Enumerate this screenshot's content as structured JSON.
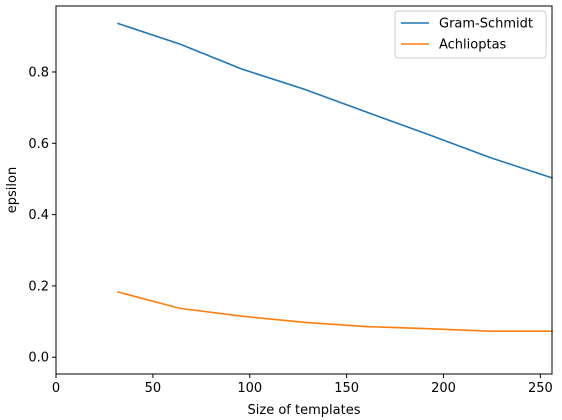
{
  "chart_data": {
    "type": "line",
    "title": "",
    "xlabel": "Size of templates",
    "ylabel": "epsilon",
    "xlim": [
      0,
      256
    ],
    "ylim": [
      -0.047,
      0.985
    ],
    "xticks": [
      0,
      50,
      100,
      150,
      200,
      250
    ],
    "xtick_labels": [
      "0",
      "50",
      "100",
      "150",
      "200",
      "250"
    ],
    "yticks": [
      0.0,
      0.2,
      0.4,
      0.6,
      0.8
    ],
    "ytick_labels": [
      "0.0",
      "0.2",
      "0.4",
      "0.6",
      "0.8"
    ],
    "grid": false,
    "legend_position": "top-right",
    "series": [
      {
        "name": "Gram-Schmidt",
        "color": "#1f77b4",
        "x": [
          32,
          64,
          96,
          128,
          160,
          192,
          224,
          256
        ],
        "y": [
          0.936,
          0.878,
          0.808,
          0.752,
          0.688,
          0.625,
          0.56,
          0.503
        ]
      },
      {
        "name": "Achlioptas",
        "color": "#ff7f0e",
        "x": [
          32,
          64,
          96,
          128,
          160,
          192,
          224,
          256
        ],
        "y": [
          0.183,
          0.137,
          0.115,
          0.098,
          0.086,
          0.08,
          0.073,
          0.073
        ]
      }
    ]
  }
}
